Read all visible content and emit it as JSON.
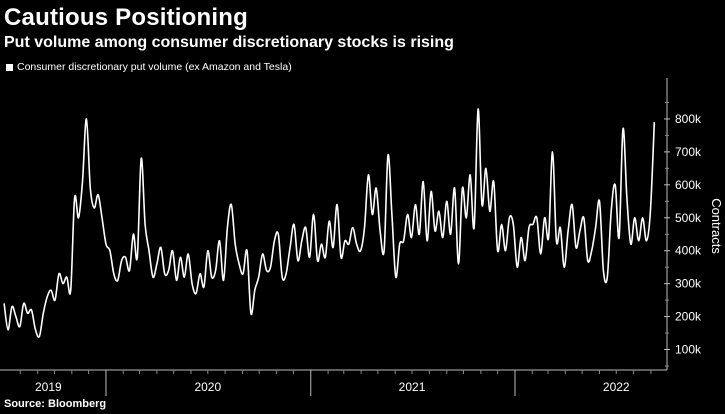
{
  "header": {
    "title": "Cautious Positioning",
    "subtitle": "Put volume among consumer discretionary stocks is rising"
  },
  "footer": {
    "source": "Source: Bloomberg"
  },
  "chart_data": {
    "type": "line",
    "title": "Cautious Positioning",
    "subtitle": "Put volume among consumer discretionary stocks is rising",
    "ylabel": "Contracts",
    "xlabel": "",
    "y_axis_position": "right",
    "ylim": [
      50000,
      900000
    ],
    "y_ticks": [
      100000,
      200000,
      300000,
      400000,
      500000,
      600000,
      700000,
      800000
    ],
    "y_tick_labels": [
      "100k",
      "200k",
      "300k",
      "400k",
      "500k",
      "600k",
      "700k",
      "800k"
    ],
    "x_tick_labels": [
      "2019",
      "2020",
      "2021",
      "2022"
    ],
    "xlim": [
      "2019-07-01",
      "2022-09-10"
    ],
    "year_boundaries": [
      "2020-01-01",
      "2021-01-01",
      "2022-01-01"
    ],
    "year_label_dates": [
      "2019-09-20",
      "2020-07-01",
      "2021-07-01",
      "2022-07-01"
    ],
    "legend_placement": "top-left",
    "grid": false,
    "line_color": "#ffffff",
    "series": [
      {
        "name": "Consumer discretionary put volume (ex Amazon and Tesla)",
        "x": [
          "2019-07-03",
          "2019-07-10",
          "2019-07-17",
          "2019-07-24",
          "2019-07-31",
          "2019-08-07",
          "2019-08-14",
          "2019-08-21",
          "2019-08-28",
          "2019-09-04",
          "2019-09-11",
          "2019-09-18",
          "2019-09-25",
          "2019-10-02",
          "2019-10-09",
          "2019-10-16",
          "2019-10-23",
          "2019-10-30",
          "2019-11-06",
          "2019-11-13",
          "2019-11-20",
          "2019-11-27",
          "2019-12-04",
          "2019-12-11",
          "2019-12-18",
          "2019-12-25",
          "2020-01-01",
          "2020-01-08",
          "2020-01-15",
          "2020-01-22",
          "2020-01-29",
          "2020-02-05",
          "2020-02-12",
          "2020-02-19",
          "2020-02-26",
          "2020-03-04",
          "2020-03-11",
          "2020-03-18",
          "2020-03-25",
          "2020-04-01",
          "2020-04-08",
          "2020-04-15",
          "2020-04-22",
          "2020-04-29",
          "2020-05-06",
          "2020-05-13",
          "2020-05-20",
          "2020-05-27",
          "2020-06-03",
          "2020-06-10",
          "2020-06-17",
          "2020-06-24",
          "2020-07-01",
          "2020-07-08",
          "2020-07-15",
          "2020-07-22",
          "2020-07-29",
          "2020-08-05",
          "2020-08-12",
          "2020-08-19",
          "2020-08-26",
          "2020-09-02",
          "2020-09-09",
          "2020-09-16",
          "2020-09-23",
          "2020-09-30",
          "2020-10-07",
          "2020-10-14",
          "2020-10-21",
          "2020-10-28",
          "2020-11-04",
          "2020-11-11",
          "2020-11-18",
          "2020-11-25",
          "2020-12-02",
          "2020-12-09",
          "2020-12-16",
          "2020-12-23",
          "2020-12-30",
          "2021-01-06",
          "2021-01-13",
          "2021-01-20",
          "2021-01-27",
          "2021-02-03",
          "2021-02-10",
          "2021-02-17",
          "2021-02-24",
          "2021-03-03",
          "2021-03-10",
          "2021-03-17",
          "2021-03-24",
          "2021-03-31",
          "2021-04-07",
          "2021-04-14",
          "2021-04-21",
          "2021-04-28",
          "2021-05-05",
          "2021-05-12",
          "2021-05-19",
          "2021-05-26",
          "2021-06-02",
          "2021-06-09",
          "2021-06-16",
          "2021-06-23",
          "2021-06-30",
          "2021-07-07",
          "2021-07-14",
          "2021-07-21",
          "2021-07-28",
          "2021-08-04",
          "2021-08-11",
          "2021-08-18",
          "2021-08-25",
          "2021-09-01",
          "2021-09-08",
          "2021-09-15",
          "2021-09-22",
          "2021-09-29",
          "2021-10-06",
          "2021-10-13",
          "2021-10-20",
          "2021-10-27",
          "2021-11-03",
          "2021-11-10",
          "2021-11-17",
          "2021-11-24",
          "2021-12-01",
          "2021-12-08",
          "2021-12-15",
          "2021-12-22",
          "2021-12-29",
          "2022-01-05",
          "2022-01-12",
          "2022-01-19",
          "2022-01-26",
          "2022-02-02",
          "2022-02-09",
          "2022-02-16",
          "2022-02-23",
          "2022-03-02",
          "2022-03-09",
          "2022-03-16",
          "2022-03-23",
          "2022-03-30",
          "2022-04-06",
          "2022-04-13",
          "2022-04-20",
          "2022-04-27",
          "2022-05-04",
          "2022-05-11",
          "2022-05-18",
          "2022-05-25",
          "2022-06-01",
          "2022-06-08",
          "2022-06-15",
          "2022-06-22",
          "2022-06-29",
          "2022-07-06",
          "2022-07-13",
          "2022-07-20",
          "2022-07-27",
          "2022-08-03",
          "2022-08-10",
          "2022-08-17",
          "2022-08-24",
          "2022-08-31",
          "2022-09-07"
        ],
        "values": [
          240000,
          160000,
          230000,
          200000,
          170000,
          240000,
          210000,
          220000,
          160000,
          140000,
          210000,
          260000,
          280000,
          250000,
          330000,
          300000,
          320000,
          280000,
          560000,
          500000,
          610000,
          800000,
          590000,
          530000,
          570000,
          500000,
          420000,
          400000,
          330000,
          310000,
          370000,
          380000,
          340000,
          450000,
          380000,
          680000,
          480000,
          400000,
          320000,
          360000,
          410000,
          330000,
          340000,
          400000,
          310000,
          380000,
          320000,
          390000,
          300000,
          270000,
          330000,
          290000,
          400000,
          320000,
          340000,
          430000,
          310000,
          470000,
          540000,
          420000,
          360000,
          330000,
          400000,
          210000,
          280000,
          320000,
          390000,
          340000,
          350000,
          430000,
          450000,
          320000,
          330000,
          410000,
          480000,
          370000,
          430000,
          470000,
          380000,
          510000,
          370000,
          420000,
          380000,
          490000,
          410000,
          540000,
          380000,
          430000,
          420000,
          470000,
          420000,
          400000,
          470000,
          630000,
          510000,
          590000,
          460000,
          400000,
          690000,
          510000,
          320000,
          420000,
          430000,
          510000,
          440000,
          540000,
          450000,
          610000,
          430000,
          580000,
          460000,
          520000,
          440000,
          550000,
          450000,
          590000,
          360000,
          590000,
          500000,
          630000,
          470000,
          830000,
          540000,
          650000,
          520000,
          610000,
          400000,
          480000,
          400000,
          500000,
          480000,
          350000,
          440000,
          370000,
          470000,
          480000,
          500000,
          390000,
          500000,
          440000,
          700000,
          430000,
          470000,
          350000,
          460000,
          540000,
          410000,
          460000,
          500000,
          370000,
          400000,
          470000,
          550000,
          340000,
          320000,
          520000,
          600000,
          440000,
          770000,
          560000,
          420000,
          500000,
          430000,
          500000,
          430000,
          520000,
          790000
        ]
      }
    ]
  }
}
